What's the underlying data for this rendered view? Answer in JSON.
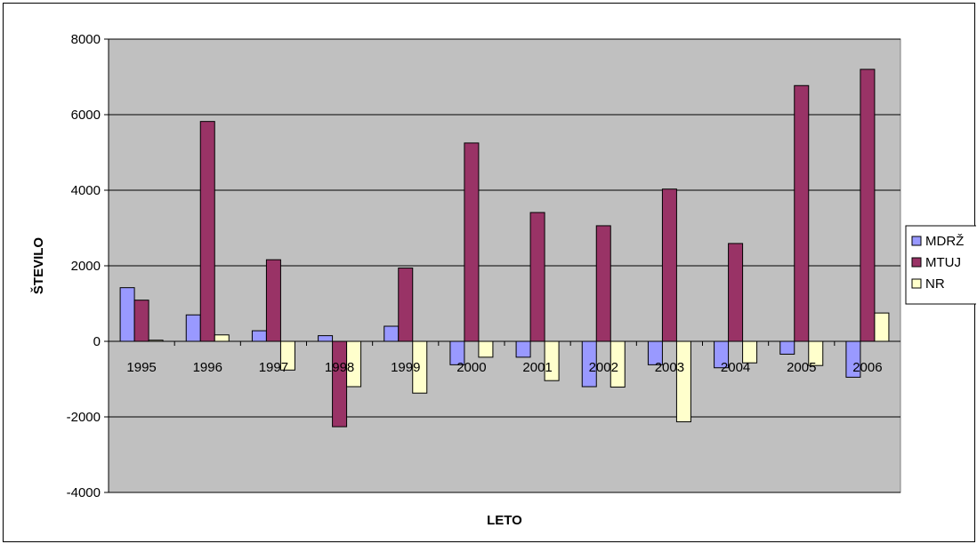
{
  "chart_data": {
    "type": "bar",
    "title": "",
    "xlabel": "LETO",
    "ylabel": "ŠTEVILO",
    "categories": [
      "1995",
      "1996",
      "1997",
      "1998",
      "1999",
      "2000",
      "2001",
      "2002",
      "2003",
      "2004",
      "2005",
      "2006"
    ],
    "series": [
      {
        "name": "MDRŽ",
        "color": "#9999ff",
        "values": [
          1420,
          700,
          280,
          150,
          400,
          -620,
          -420,
          -1200,
          -620,
          -700,
          -340,
          -950
        ]
      },
      {
        "name": "MTUJ",
        "color": "#993366",
        "values": [
          1090,
          5820,
          2160,
          -2260,
          1940,
          5250,
          3410,
          3060,
          4030,
          2590,
          6770,
          7200
        ]
      },
      {
        "name": "NR",
        "color": "#ffffcc",
        "values": [
          30,
          170,
          -760,
          -1200,
          -1370,
          -420,
          -1040,
          -1210,
          -2130,
          -570,
          -640,
          750
        ]
      }
    ],
    "ylim": [
      -4000,
      8000
    ],
    "yticks": [
      -4000,
      -2000,
      0,
      2000,
      4000,
      6000,
      8000
    ],
    "grid": true,
    "plot_background": "#c0c0c0",
    "legend": "right"
  }
}
